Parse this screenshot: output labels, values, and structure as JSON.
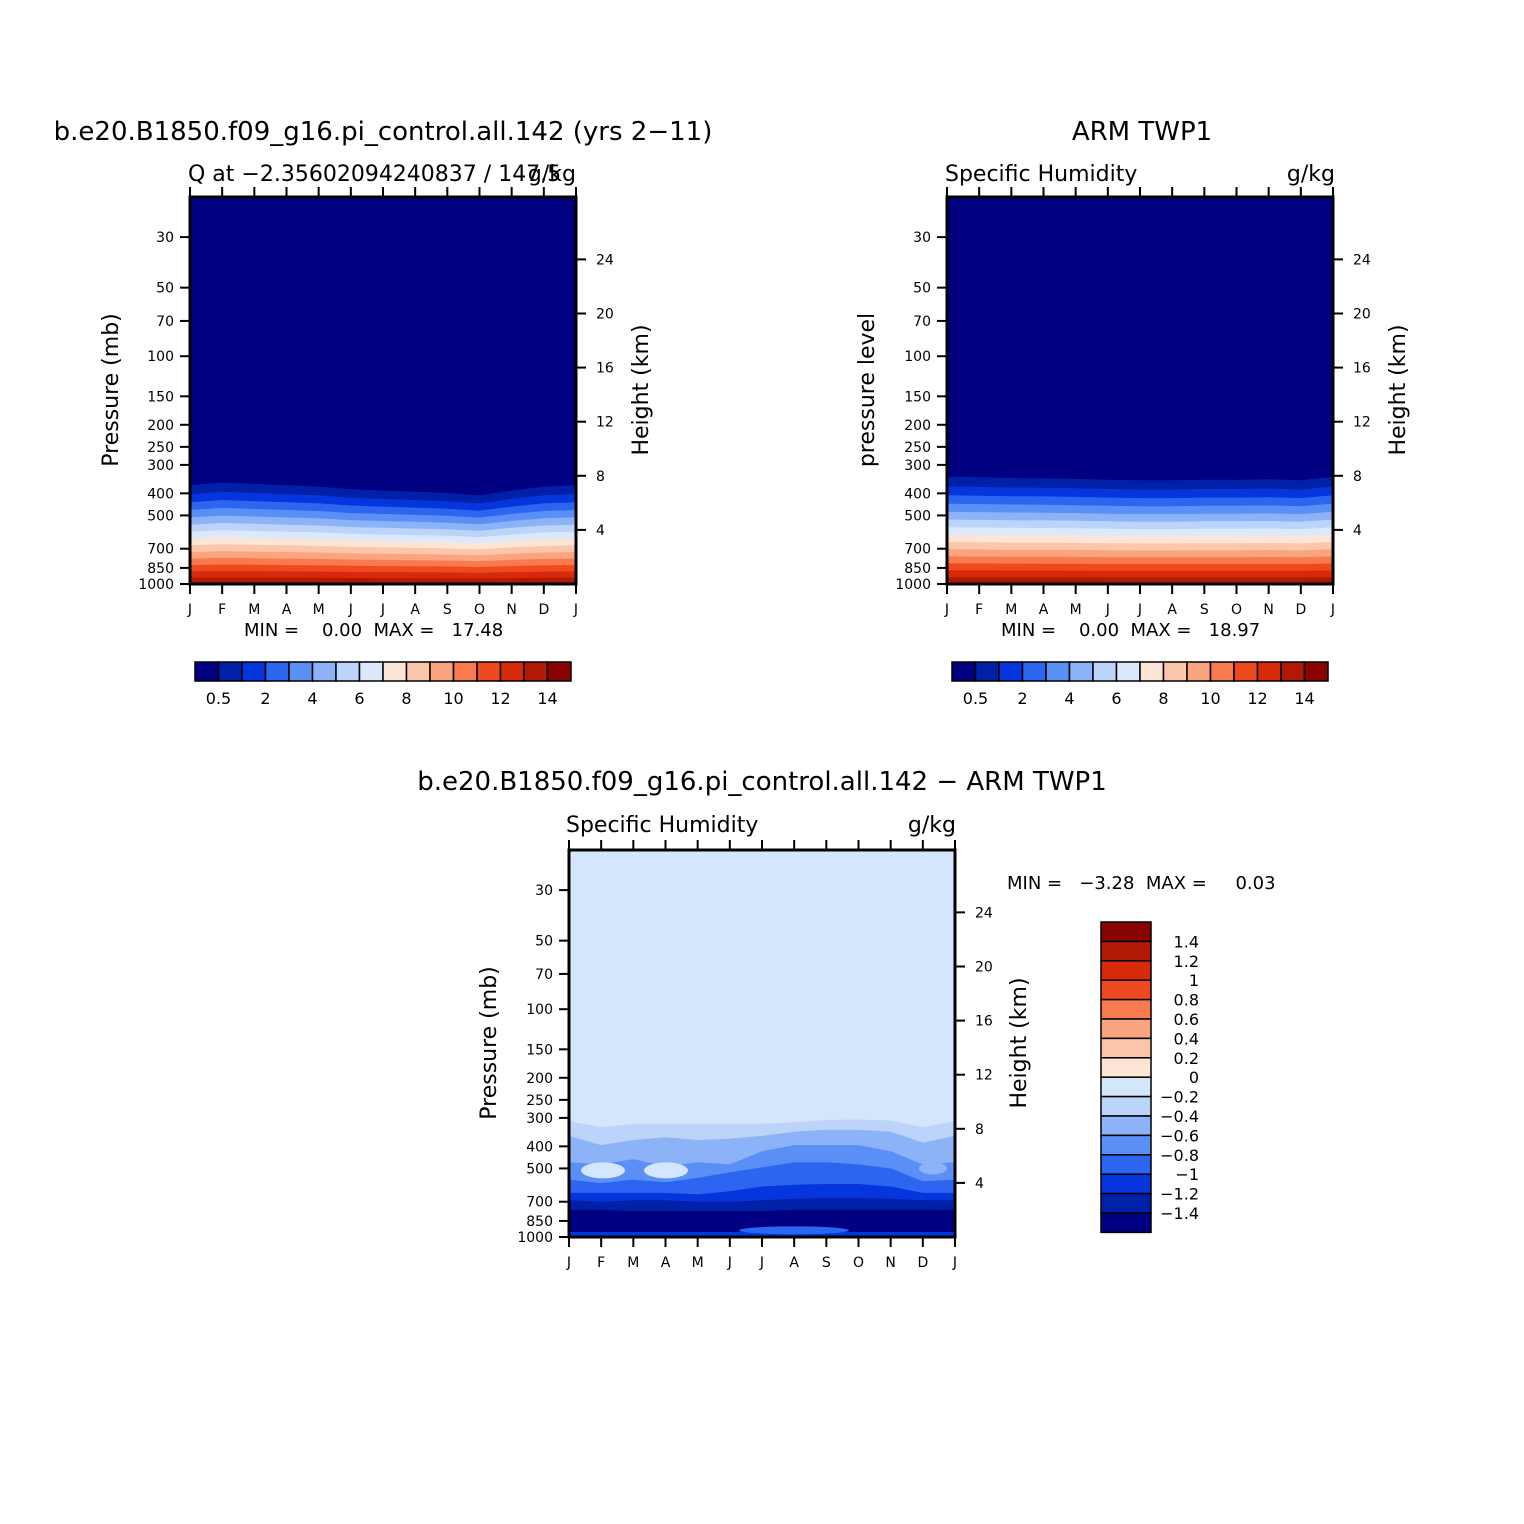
{
  "chart_data": [
    {
      "type": "heatmap",
      "title": "b.e20.B1850.f09_g16.pi_control.all.142 (yrs 2−11)",
      "subtitle_left": "Q at −2.35602094240837 / 147.5",
      "subtitle_right": "g/kg",
      "xlabel": "",
      "ylabel": "Pressure (mb)",
      "ylabel_right": "Height (km)",
      "x_categories": [
        "J",
        "F",
        "M",
        "A",
        "M",
        "J",
        "J",
        "A",
        "S",
        "O",
        "N",
        "D",
        "J"
      ],
      "y_ticks": [
        "30",
        "50",
        "70",
        "100",
        "150",
        "200",
        "250",
        "300",
        "400",
        "500",
        "700",
        "850",
        "1000"
      ],
      "y_ticks_right": [
        "24",
        "20",
        "16",
        "12",
        "8",
        "4"
      ],
      "stats_text": "MIN =    0.00  MAX =   17.48",
      "min": 0.0,
      "max": 17.48,
      "colorbar_labels": [
        "0.5",
        "2",
        "4",
        "6",
        "8",
        "10",
        "12",
        "14"
      ],
      "moisture_top_hpa": [
        330,
        320,
        325,
        330,
        335,
        345,
        350,
        355,
        360,
        370,
        350,
        335,
        330
      ],
      "colorbar_orientation": "horizontal-bottom"
    },
    {
      "type": "heatmap",
      "title": "ARM TWP1",
      "subtitle_left": "Specific Humidity",
      "subtitle_right": "g/kg",
      "xlabel": "",
      "ylabel": "pressure level",
      "ylabel_right": "Height (km)",
      "x_categories": [
        "J",
        "F",
        "M",
        "A",
        "M",
        "J",
        "J",
        "A",
        "S",
        "O",
        "N",
        "D",
        "J"
      ],
      "y_ticks": [
        "30",
        "50",
        "70",
        "100",
        "150",
        "200",
        "250",
        "300",
        "400",
        "500",
        "700",
        "850",
        "1000"
      ],
      "y_ticks_right": [
        "24",
        "20",
        "16",
        "12",
        "8",
        "4"
      ],
      "stats_text": "MIN =    0.00  MAX =   18.97",
      "min": 0.0,
      "max": 18.97,
      "colorbar_labels": [
        "0.5",
        "2",
        "4",
        "6",
        "8",
        "10",
        "12",
        "14"
      ],
      "moisture_top_hpa": [
        300,
        302,
        304,
        305,
        307,
        310,
        312,
        312,
        310,
        310,
        308,
        312,
        300
      ],
      "colorbar_orientation": "horizontal-bottom"
    },
    {
      "type": "heatmap",
      "title": "b.e20.B1850.f09_g16.pi_control.all.142 − ARM TWP1",
      "subtitle_left": "Specific Humidity",
      "subtitle_right": "g/kg",
      "xlabel": "",
      "ylabel": "Pressure (mb)",
      "ylabel_right": "Height (km)",
      "x_categories": [
        "J",
        "F",
        "M",
        "A",
        "M",
        "J",
        "J",
        "A",
        "S",
        "O",
        "N",
        "D",
        "J"
      ],
      "y_ticks": [
        "30",
        "50",
        "70",
        "100",
        "150",
        "200",
        "250",
        "300",
        "400",
        "500",
        "700",
        "850",
        "1000"
      ],
      "y_ticks_right": [
        "24",
        "20",
        "16",
        "12",
        "8",
        "4"
      ],
      "stats_text": "MIN =   −3.28  MAX =     0.03",
      "min": -3.28,
      "max": 0.03,
      "colorbar_labels": [
        "1.4",
        "1.2",
        "1",
        "0.8",
        "0.6",
        "0.4",
        "0.2",
        "0",
        "−0.2",
        "−0.4",
        "−0.6",
        "−0.8",
        "−1",
        "−1.2",
        "−1.4"
      ],
      "colorbar_orientation": "vertical-right"
    }
  ],
  "colors": {
    "sequential": [
      "#000080",
      "#0020a8",
      "#0535dc",
      "#2c66f0",
      "#5a8ff6",
      "#8cb2f8",
      "#bcd4fa",
      "#dce9fd",
      "#fde5d6",
      "#fcc6aa",
      "#fba580",
      "#f97a4e",
      "#ef4a1f",
      "#d62a0a",
      "#b01a05",
      "#8a0303"
    ],
    "difference": [
      "#8a0303",
      "#b01a05",
      "#d62a0a",
      "#ef4a1f",
      "#f97a4e",
      "#fba580",
      "#fcc6aa",
      "#fde5d6",
      "#d4e6fc",
      "#bcd4fa",
      "#8cb2f8",
      "#5a8ff6",
      "#2c66f0",
      "#0535dc",
      "#0020a8",
      "#000080"
    ]
  }
}
